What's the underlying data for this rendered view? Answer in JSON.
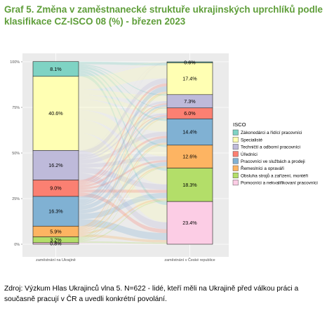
{
  "title": "Graf 5. Změna v zaměstnanecké struktuře ukrajinských uprchlíků podle klasifikace CZ-ISCO 08 (%) - březen 2023",
  "source_note": "Zdroj: Výzkum Hlas Ukrajinců vlna 5. N=622 - lidé, kteří měli na Ukrajině před válkou práci a současně pracují v ČR a uvedli konkrétní povolání.",
  "chart_data": {
    "type": "alluvial",
    "y_ticks": [
      "0%",
      "25%",
      "50%",
      "75%",
      "100%"
    ],
    "y_tick_values": [
      0,
      25,
      50,
      75,
      100
    ],
    "ylim": [
      0,
      100
    ],
    "x_categories": [
      "zaměstnání na Ukrajině",
      "zaměstnání v České republice"
    ],
    "legend_title": "ISCO",
    "legend_position": "right",
    "categories": [
      {
        "name": "Zákonodárci a řídící pracovníci",
        "color": "#7fd3c4"
      },
      {
        "name": "Specialisté",
        "color": "#ffffb3"
      },
      {
        "name": "Techničtí a odborní pracovníci",
        "color": "#bebada"
      },
      {
        "name": "Úředníci",
        "color": "#fb8072"
      },
      {
        "name": "Pracovníci ve službách a prodeji",
        "color": "#80b1d3"
      },
      {
        "name": "Řemeslníci a opraváři",
        "color": "#fdb462"
      },
      {
        "name": "Obsluha strojů a zařízení, montéři",
        "color": "#b3de69"
      },
      {
        "name": "Pomocníci a nekvalifikovaní pracovníci",
        "color": "#fccde5"
      }
    ],
    "stacks": [
      {
        "name": "zaměstnání na Ukrajině",
        "values": [
          8.1,
          40.6,
          16.2,
          9.0,
          16.3,
          5.9,
          3.2,
          0.8
        ],
        "labels": [
          "8.1%",
          "40.6%",
          "16.2%",
          "9.0%",
          "16.3%",
          "5.9%",
          "3.2%",
          "0.8%"
        ]
      },
      {
        "name": "zaměstnání v České republice",
        "values": [
          0.6,
          17.4,
          7.3,
          6.0,
          14.4,
          12.6,
          18.3,
          23.4
        ],
        "labels": [
          "0.6%",
          "17.4%",
          "7.3%",
          "6.0%",
          "14.4%",
          "12.6%",
          "18.3%",
          "23.4%"
        ]
      }
    ]
  }
}
